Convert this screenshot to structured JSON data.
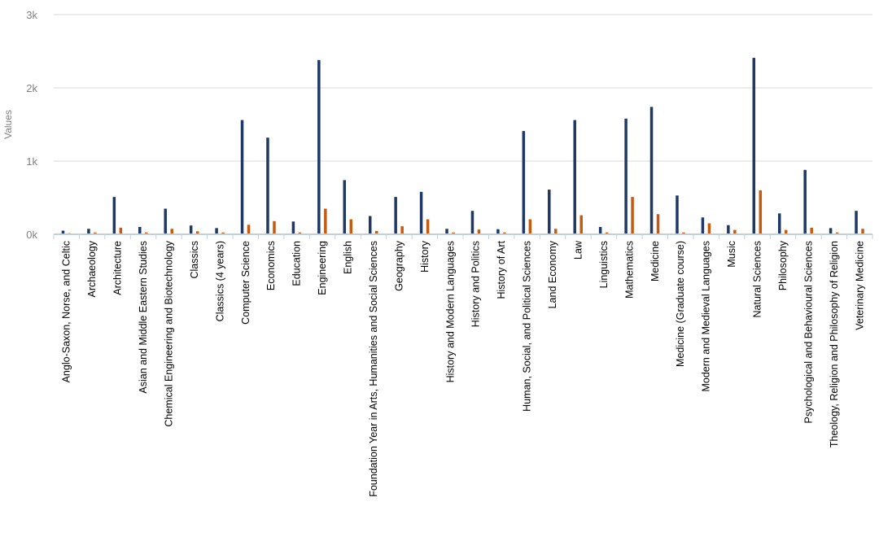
{
  "chart_data": {
    "type": "bar",
    "title": "",
    "xlabel": "",
    "ylabel": "Values",
    "ylim": [
      0,
      3000
    ],
    "yticks": [
      0,
      1000,
      2000,
      3000
    ],
    "ytick_labels": [
      "0k",
      "1k",
      "2k",
      "3k"
    ],
    "grid": true,
    "legend": "none",
    "categories": [
      "Anglo-Saxon, Norse, and Celtic",
      "Archaeology",
      "Architecture",
      "Asian and Middle Eastern Studies",
      "Chemical Engineering and Biotechnology",
      "Classics",
      "Classics (4 years)",
      "Computer Science",
      "Economics",
      "Education",
      "Engineering",
      "English",
      "Foundation Year in Arts, Humanities and Social Sciences",
      "Geography",
      "History",
      "History and Modern Languages",
      "History and Politics",
      "History of Art",
      "Human, Social, and Political Sciences",
      "Land Economy",
      "Law",
      "Linguistics",
      "Mathematics",
      "Medicine",
      "Medicine (Graduate course)",
      "Modern and Medieval Languages",
      "Music",
      "Natural Sciences",
      "Philosophy",
      "Psychological and Behavioural Sciences",
      "Theology, Religion and Philosophy of Religion",
      "Veterinary Medicine"
    ],
    "series": [
      {
        "color": "#1f3864",
        "values": [
          50,
          75,
          510,
          100,
          350,
          120,
          85,
          1560,
          1320,
          175,
          2380,
          740,
          250,
          510,
          580,
          75,
          320,
          70,
          1410,
          610,
          1560,
          100,
          1580,
          1740,
          530,
          230,
          125,
          2410,
          285,
          880,
          85,
          320
        ]
      },
      {
        "color": "#c55a11",
        "values": [
          15,
          25,
          90,
          25,
          75,
          40,
          25,
          130,
          180,
          25,
          350,
          205,
          45,
          110,
          205,
          25,
          65,
          25,
          205,
          75,
          260,
          25,
          510,
          275,
          25,
          150,
          60,
          600,
          60,
          90,
          25,
          75
        ]
      }
    ]
  }
}
